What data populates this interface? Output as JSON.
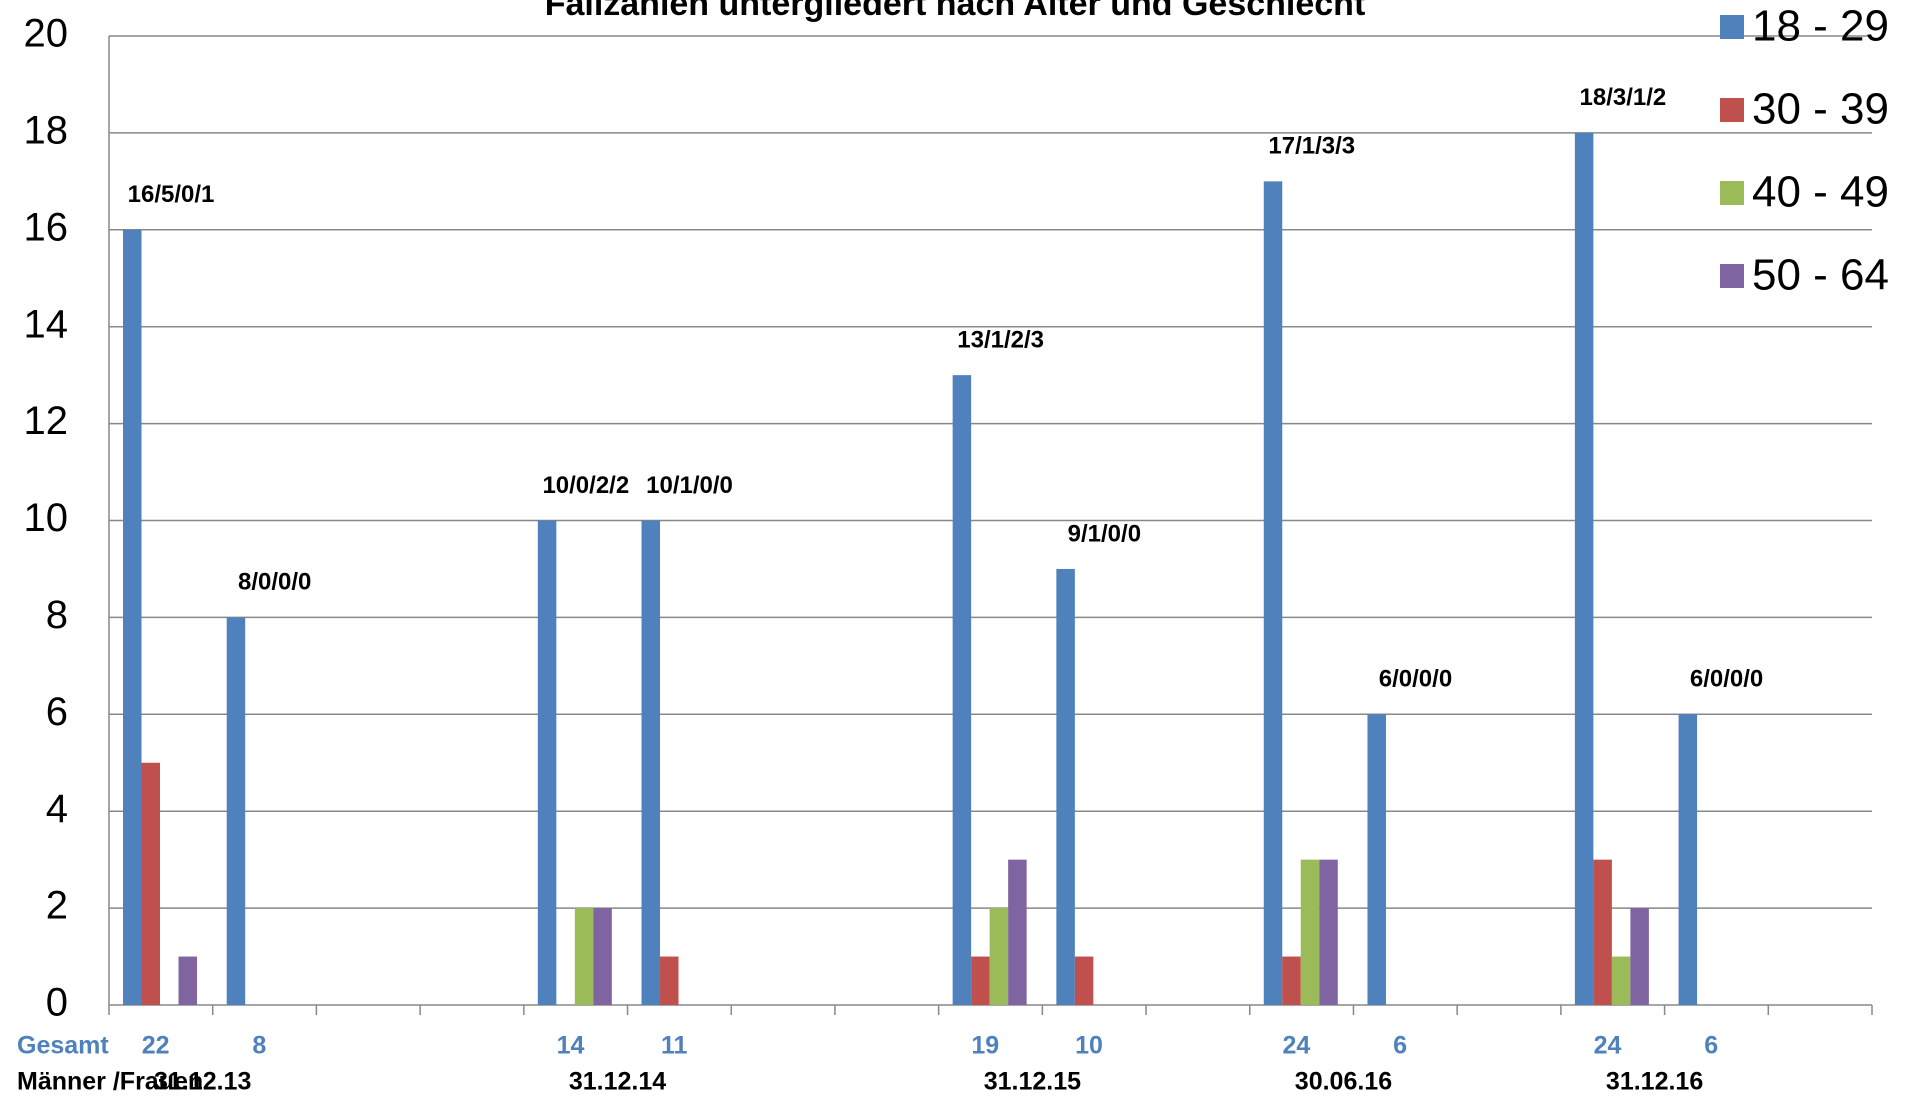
{
  "chart_data": {
    "type": "bar",
    "title": "Fallzahlen untergliedert nach Alter und Geschlecht",
    "categories": [
      null,
      null,
      null,
      null,
      null,
      null,
      null,
      null,
      null,
      null,
      null,
      null,
      null,
      null,
      null,
      null,
      null
    ],
    "series": [
      {
        "name": "18 - 29",
        "color": "#4f81bd",
        "values": [
          16,
          8,
          null,
          null,
          10,
          10,
          null,
          null,
          13,
          9,
          null,
          17,
          6,
          null,
          18,
          6,
          null
        ]
      },
      {
        "name": "30 - 39",
        "color": "#c0504d",
        "values": [
          5,
          0,
          null,
          null,
          0,
          1,
          null,
          null,
          1,
          1,
          null,
          1,
          0,
          null,
          3,
          0,
          null
        ]
      },
      {
        "name": "40 - 49",
        "color": "#9bbb59",
        "values": [
          0,
          0,
          null,
          null,
          2,
          0,
          null,
          null,
          2,
          0,
          null,
          3,
          0,
          null,
          1,
          0,
          null
        ]
      },
      {
        "name": "50 - 64",
        "color": "#8064a2",
        "values": [
          1,
          0,
          null,
          null,
          2,
          0,
          null,
          null,
          3,
          0,
          null,
          3,
          0,
          null,
          2,
          0,
          null
        ]
      }
    ],
    "bar_labels": [
      "16/5/0/1",
      "8/0/0/0",
      null,
      null,
      "10/0/2/2",
      "10/1/0/0",
      null,
      null,
      "13/1/2/3",
      "9/1/0/0",
      null,
      "17/1/3/3",
      "6/0/0/0",
      null,
      "18/3/1/2",
      "6/0/0/0",
      null
    ],
    "total_row": {
      "label": "Gesamt",
      "values": [
        22,
        8,
        null,
        null,
        14,
        11,
        null,
        null,
        19,
        10,
        null,
        24,
        6,
        null,
        24,
        6,
        null
      ]
    },
    "date_row": {
      "label": "Männer /Frauen",
      "values": [
        null,
        "31.12.13",
        null,
        null,
        null,
        "31.12.14",
        null,
        null,
        null,
        "31.12.15",
        null,
        null,
        "30.06.16",
        null,
        null,
        "31.12.16",
        null
      ]
    },
    "ylim": [
      0,
      20
    ],
    "yticks": [
      0,
      2,
      4,
      6,
      8,
      10,
      12,
      14,
      16,
      18,
      20
    ],
    "grid": true,
    "legend": "right"
  }
}
